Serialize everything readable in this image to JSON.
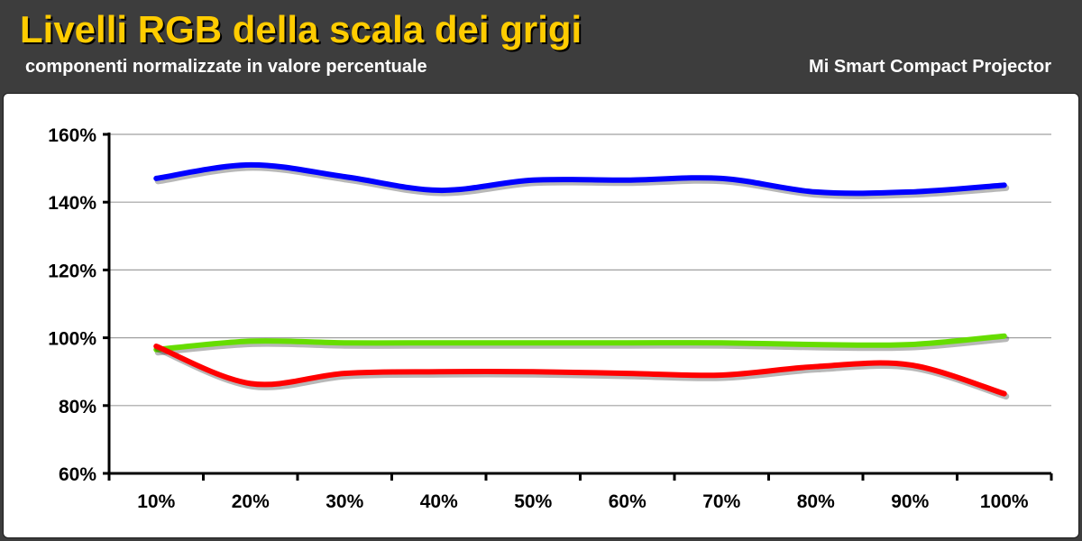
{
  "header": {
    "title": "Livelli RGB della scala dei grigi",
    "subtitle": "componenti normalizzate in valore percentuale",
    "product": "Mi Smart Compact Projector"
  },
  "colors": {
    "background": "#3d3d3d",
    "title": "#ffcc00",
    "red": "#ff0000",
    "green": "#66dd00",
    "blue": "#0000ff",
    "grid": "#a0a0a0"
  },
  "chart_data": {
    "type": "line",
    "categories": [
      "10%",
      "20%",
      "30%",
      "40%",
      "50%",
      "60%",
      "70%",
      "80%",
      "90%",
      "100%"
    ],
    "yticks": [
      "60%",
      "80%",
      "100%",
      "120%",
      "140%",
      "160%"
    ],
    "ylim": [
      60,
      160
    ],
    "grid": true,
    "smooth": true,
    "series": [
      {
        "color": "#0000ff",
        "values": [
          147,
          151,
          147.5,
          143.5,
          146.5,
          146.5,
          147,
          143,
          143,
          145
        ]
      },
      {
        "color": "#66dd00",
        "values": [
          96.5,
          99,
          98.5,
          98.5,
          98.5,
          98.5,
          98.5,
          98,
          98,
          100.5
        ]
      },
      {
        "color": "#ff0000",
        "values": [
          97.5,
          86.5,
          89.5,
          90,
          90,
          89.5,
          89,
          91.5,
          92,
          83.5
        ]
      }
    ]
  }
}
